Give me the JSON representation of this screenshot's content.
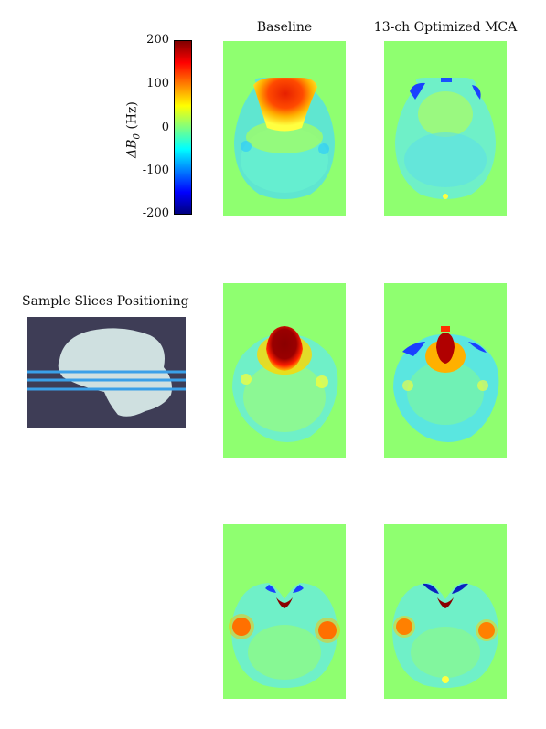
{
  "columns": {
    "baseline": "Baseline",
    "optimized": "13-ch Optimized MCA"
  },
  "colorbar": {
    "label": "ΔB",
    "label_sub": "0",
    "label_unit": " (Hz)",
    "ticks": [
      "200",
      "100",
      "0",
      "-100",
      "-200"
    ],
    "range": [
      -200,
      200
    ],
    "colormap": "jet"
  },
  "positioning": {
    "title": "Sample Slices Positioning",
    "background_color": "#3e3d56",
    "brain_color": "#cfe0e0",
    "line_color": "#3aa0e8"
  },
  "panel_background": "#8fff70"
}
